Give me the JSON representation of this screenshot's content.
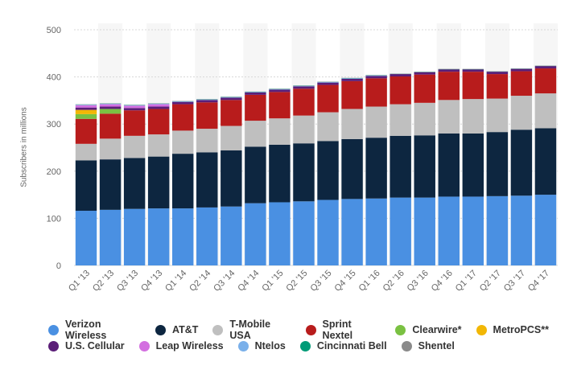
{
  "chart_data": {
    "type": "bar",
    "stacked": true,
    "ylabel": "Subscribers in millions",
    "ylim": [
      0,
      500
    ],
    "yticks": [
      0,
      100,
      200,
      300,
      400,
      500
    ],
    "grid": true,
    "legend_position": "bottom",
    "categories": [
      "Q1 '13",
      "Q2 '13",
      "Q3 '13",
      "Q4 '13",
      "Q1 '14",
      "Q2 '14",
      "Q3 '14",
      "Q4 '14",
      "Q1 '15",
      "Q2 '15",
      "Q3 '15",
      "Q4 '15",
      "Q1 '16",
      "Q2 '16",
      "Q3 '16",
      "Q4 '16",
      "Q1 '17",
      "Q2 '17",
      "Q3 '17",
      "Q4 '17"
    ],
    "series": [
      {
        "name": "Verizon Wireless",
        "color": "#4a90e2",
        "values": [
          116,
          118,
          120,
          121,
          121,
          123,
          125,
          132,
          134,
          136,
          139,
          141,
          142,
          144,
          144,
          146,
          146,
          147,
          148,
          150
        ]
      },
      {
        "name": "AT&T",
        "color": "#0d2640",
        "values": [
          107,
          107,
          108,
          110,
          116,
          117,
          119,
          120,
          122,
          123,
          125,
          127,
          129,
          131,
          132,
          134,
          134,
          136,
          140,
          141
        ]
      },
      {
        "name": "T-Mobile USA",
        "color": "#bfbfbf",
        "values": [
          35,
          44,
          47,
          47,
          49,
          50,
          52,
          55,
          56,
          59,
          61,
          64,
          66,
          67,
          69,
          71,
          73,
          71,
          72,
          74
        ]
      },
      {
        "name": "Sprint Nextel",
        "color": "#b81c1c",
        "values": [
          53,
          53,
          54,
          54,
          56,
          56,
          55,
          55,
          56,
          57,
          58,
          59,
          60,
          59,
          60,
          60,
          58,
          52,
          52,
          53
        ]
      },
      {
        "name": "Clearwire*",
        "color": "#7ac142",
        "values": [
          10,
          10,
          0,
          0,
          0,
          0,
          0,
          0,
          0,
          0,
          0,
          0,
          0,
          0,
          0,
          0,
          0,
          0,
          0,
          0
        ]
      },
      {
        "name": "MetroPCS**",
        "color": "#f2b705",
        "values": [
          9,
          0,
          0,
          0,
          0,
          0,
          0,
          0,
          0,
          0,
          0,
          0,
          0,
          0,
          0,
          0,
          0,
          0,
          0,
          0
        ]
      },
      {
        "name": "U.S. Cellular",
        "color": "#5b1e78",
        "values": [
          5,
          5,
          5,
          5,
          5,
          5,
          5,
          5,
          5,
          5,
          5,
          5,
          5,
          5,
          5,
          5,
          5,
          5,
          5,
          5
        ]
      },
      {
        "name": "Leap Wireless",
        "color": "#d36fe0",
        "values": [
          5,
          5,
          5,
          5,
          0,
          0,
          0,
          0,
          0,
          0,
          0,
          0,
          0,
          0,
          0,
          0,
          0,
          0,
          0,
          0
        ]
      },
      {
        "name": "Ntelos",
        "color": "#7ab0ea",
        "values": [
          1,
          1,
          1,
          1,
          1,
          1,
          1,
          1,
          1,
          1,
          1,
          1,
          1,
          0,
          0,
          0,
          0,
          0,
          0,
          0
        ]
      },
      {
        "name": "Cincinnati Bell",
        "color": "#009b77",
        "values": [
          0.5,
          0.5,
          0.5,
          0.5,
          0.5,
          0.5,
          0.5,
          0.5,
          0.5,
          0.5,
          0.5,
          0.5,
          0.5,
          0.5,
          0.5,
          0.5,
          0.5,
          0.5,
          0.5,
          0.5
        ]
      },
      {
        "name": "Shentel",
        "color": "#8a8a8a",
        "values": [
          0.5,
          0.5,
          0.5,
          0.5,
          0.5,
          0.5,
          0.5,
          0.5,
          0.5,
          0.5,
          0.5,
          0.5,
          0.5,
          0.5,
          0.5,
          0.5,
          0.5,
          0.5,
          0.5,
          0.5
        ]
      }
    ],
    "legend_rows": [
      [
        0,
        1,
        2,
        3,
        4,
        5
      ],
      [
        6,
        7,
        8,
        9,
        10
      ]
    ]
  }
}
